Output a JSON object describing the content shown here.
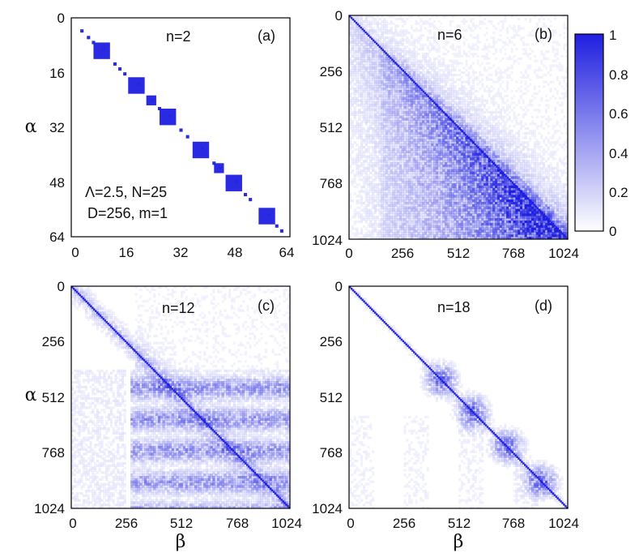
{
  "figure": {
    "cmap_color": "#1f1fe0"
  },
  "colorbar": {
    "ticks": [
      "1",
      "0.8",
      "0.6",
      "0.4",
      "0.2",
      "0"
    ],
    "range": [
      0,
      1
    ]
  },
  "chart_data": [
    {
      "type": "heatmap",
      "panel": "(a)",
      "title": "n=2",
      "params": [
        "Λ=2.5, N=25",
        "D=256, m=1"
      ],
      "ylabel": "α",
      "xlabel": "",
      "x_ticks": [
        "0",
        "16",
        "32",
        "48",
        "64"
      ],
      "y_ticks": [
        "0",
        "16",
        "32",
        "48",
        "64"
      ],
      "axis_range": [
        0,
        64
      ],
      "pattern": "block-diagonal",
      "blocks": [
        {
          "c": 2,
          "w": 1
        },
        {
          "c": 4,
          "w": 1
        },
        {
          "c": 5.5,
          "w": 1
        },
        {
          "c": 8,
          "w": 5
        },
        {
          "c": 12,
          "w": 1
        },
        {
          "c": 13.5,
          "w": 1
        },
        {
          "c": 15,
          "w": 1
        },
        {
          "c": 18.5,
          "w": 5
        },
        {
          "c": 23,
          "w": 3
        },
        {
          "c": 25.5,
          "w": 1
        },
        {
          "c": 28,
          "w": 5
        },
        {
          "c": 32,
          "w": 1
        },
        {
          "c": 34,
          "w": 1
        },
        {
          "c": 38,
          "w": 5
        },
        {
          "c": 42,
          "w": 1
        },
        {
          "c": 43.5,
          "w": 3
        },
        {
          "c": 48,
          "w": 5
        },
        {
          "c": 51.5,
          "w": 1
        },
        {
          "c": 53,
          "w": 1
        },
        {
          "c": 58,
          "w": 5
        },
        {
          "c": 61,
          "w": 1
        },
        {
          "c": 62.5,
          "w": 1
        }
      ]
    },
    {
      "type": "heatmap",
      "panel": "(b)",
      "title": "n=6",
      "xlabel": "",
      "ylabel": "",
      "x_ticks": [
        "0",
        "256",
        "512",
        "768",
        "1024"
      ],
      "y_ticks": [
        "0",
        "256",
        "512",
        "768",
        "1024"
      ],
      "axis_range": [
        0,
        1024
      ],
      "pattern": "dense-lower"
    },
    {
      "type": "heatmap",
      "panel": "(c)",
      "title": "n=12",
      "xlabel": "β",
      "ylabel": "α",
      "x_ticks": [
        "0",
        "256",
        "512",
        "768",
        "1024"
      ],
      "y_ticks": [
        "0",
        "256",
        "512",
        "768",
        "1024"
      ],
      "axis_range": [
        0,
        1024
      ],
      "pattern": "banded-lower"
    },
    {
      "type": "heatmap",
      "panel": "(d)",
      "title": "n=18",
      "xlabel": "β",
      "ylabel": "",
      "x_ticks": [
        "0",
        "256",
        "512",
        "768",
        "1024"
      ],
      "y_ticks": [
        "0",
        "256",
        "512",
        "768",
        "1024"
      ],
      "axis_range": [
        0,
        1024
      ],
      "pattern": "sparse-clusters"
    }
  ]
}
